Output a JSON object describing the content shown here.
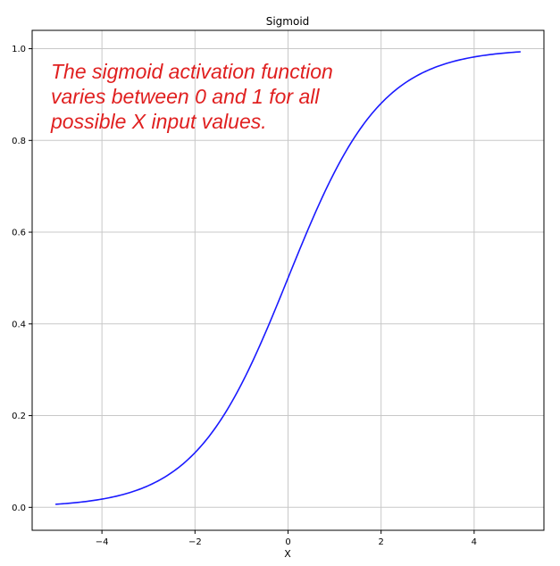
{
  "chart_data": {
    "type": "line",
    "title": "Sigmoid",
    "xlabel": "X",
    "ylabel": "",
    "xlim": [
      -5.5,
      5.5
    ],
    "ylim": [
      -0.05,
      1.04
    ],
    "grid": true,
    "x_ticks": [
      -4,
      -2,
      0,
      2,
      4
    ],
    "x_tick_labels": [
      "−4",
      "−2",
      "0",
      "2",
      "4"
    ],
    "y_ticks": [
      0.0,
      0.2,
      0.4,
      0.6,
      0.8,
      1.0
    ],
    "y_tick_labels": [
      "0.0",
      "0.2",
      "0.4",
      "0.6",
      "0.8",
      "1.0"
    ],
    "series": [
      {
        "function": "sigmoid",
        "color": "#1a1aff",
        "x": [
          -5,
          -4.5,
          -4,
          -3.5,
          -3,
          -2.5,
          -2,
          -1.5,
          -1,
          -0.5,
          0,
          0.5,
          1,
          1.5,
          2,
          2.5,
          3,
          3.5,
          4,
          4.5,
          5
        ],
        "y": [
          0.0067,
          0.011,
          0.018,
          0.0293,
          0.0474,
          0.0759,
          0.1192,
          0.1824,
          0.2689,
          0.3775,
          0.5,
          0.6225,
          0.7311,
          0.8176,
          0.8808,
          0.9241,
          0.9526,
          0.9707,
          0.982,
          0.989,
          0.9933
        ]
      }
    ],
    "annotations": [
      {
        "text": "The sigmoid activation function\nvaries between 0 and 1 for all\npossible X input values.",
        "color": "#e02020"
      }
    ]
  }
}
